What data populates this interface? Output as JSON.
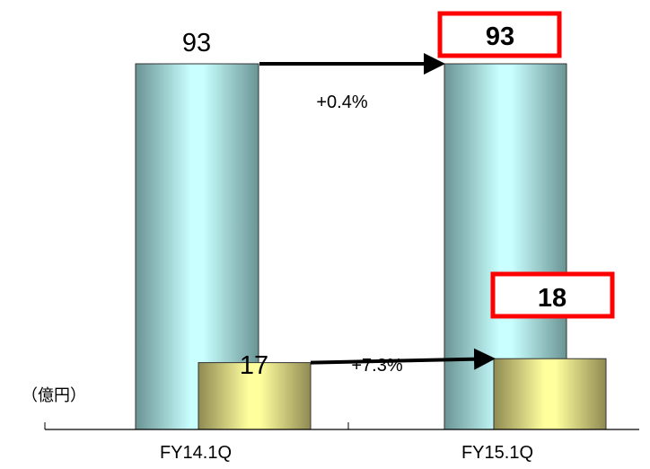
{
  "chart_data": {
    "type": "bar",
    "unit": "（億円）",
    "categories": [
      "FY14.1Q",
      "FY15.1Q"
    ],
    "series": [
      {
        "values": [
          93,
          93
        ],
        "labels": [
          "93",
          "93"
        ]
      },
      {
        "values": [
          17,
          18
        ],
        "labels": [
          "17",
          "18"
        ]
      }
    ],
    "changes": [
      {
        "series": 0,
        "label": "+0.4%"
      },
      {
        "series": 1,
        "label": "+7.3%"
      }
    ],
    "highlight_box_color": "#ff0000",
    "colors": {
      "series0_edge": "#6a9494",
      "series0_center": "#c9ffff",
      "series1_edge": "#8f8a52",
      "series1_center": "#ffff9e",
      "arrow": "#000000"
    }
  }
}
